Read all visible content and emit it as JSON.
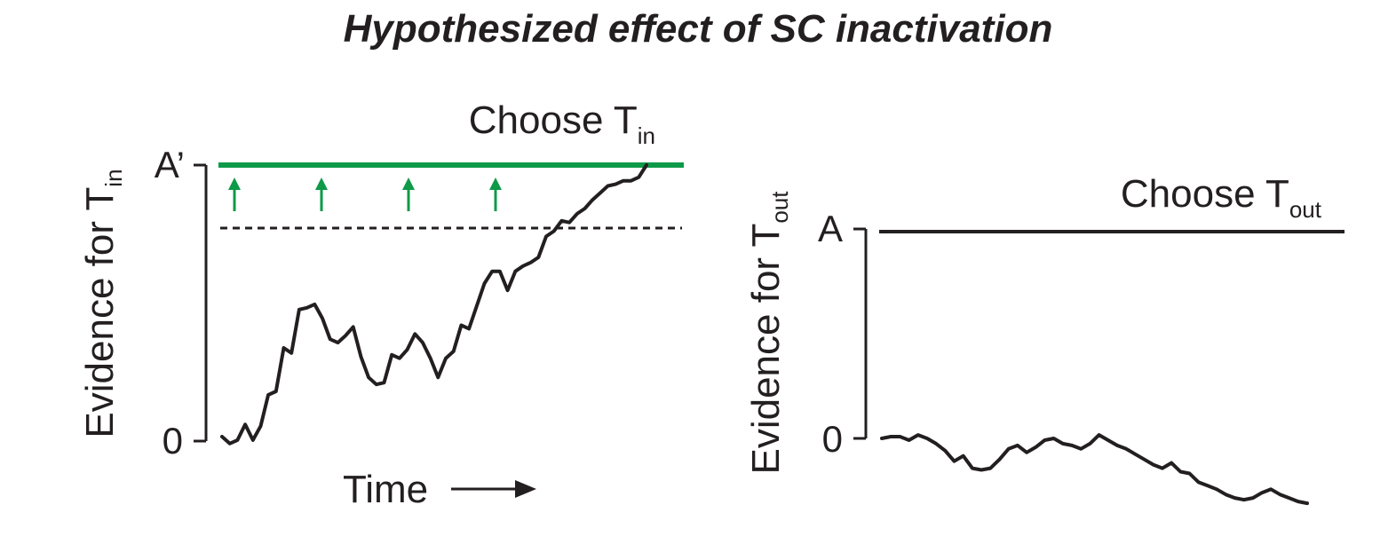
{
  "title": "Hypothesized effect of SC inactivation",
  "colors": {
    "ink": "#231f20",
    "bound": "#0e9a48",
    "arrow": "#0e9a48"
  },
  "left_panel": {
    "ylabel_main": "Evidence for T",
    "ylabel_sub": "in",
    "tick_top": "A’",
    "tick_zero": "0",
    "bound_label_main": "Choose T",
    "bound_label_sub": "in",
    "xlabel": "Time",
    "arrow_count": 4,
    "trace": [
      0,
      -4,
      -2,
      7,
      -2,
      6,
      24,
      26,
      51,
      48,
      73,
      74,
      76,
      68,
      56,
      54,
      58,
      63,
      46,
      34,
      30,
      31,
      47,
      45,
      50,
      59,
      54,
      45,
      34,
      45,
      49,
      64,
      62,
      75,
      88,
      95,
      95,
      84,
      95,
      98,
      100,
      103,
      115,
      118,
      124,
      123,
      128,
      131,
      136,
      140,
      144,
      145,
      147,
      147,
      149,
      156
    ]
  },
  "right_panel": {
    "ylabel_main": "Evidence for T",
    "ylabel_sub": "out",
    "tick_top": "A",
    "tick_zero": "0",
    "bound_label_main": "Choose T",
    "bound_label_sub": "out",
    "trace": [
      0,
      1,
      1,
      -1,
      2,
      0,
      -3,
      -7,
      -13,
      -10,
      -17,
      -18,
      -17,
      -12,
      -6,
      -4,
      -8,
      -5,
      -1,
      0,
      -3,
      -4,
      -6,
      -3,
      2,
      -1,
      -4,
      -6,
      -9,
      -12,
      -15,
      -17,
      -14,
      -19,
      -20,
      -25,
      -27,
      -29,
      -32,
      -34,
      -35,
      -34,
      -31,
      -29,
      -32,
      -34,
      -36,
      -37
    ]
  }
}
